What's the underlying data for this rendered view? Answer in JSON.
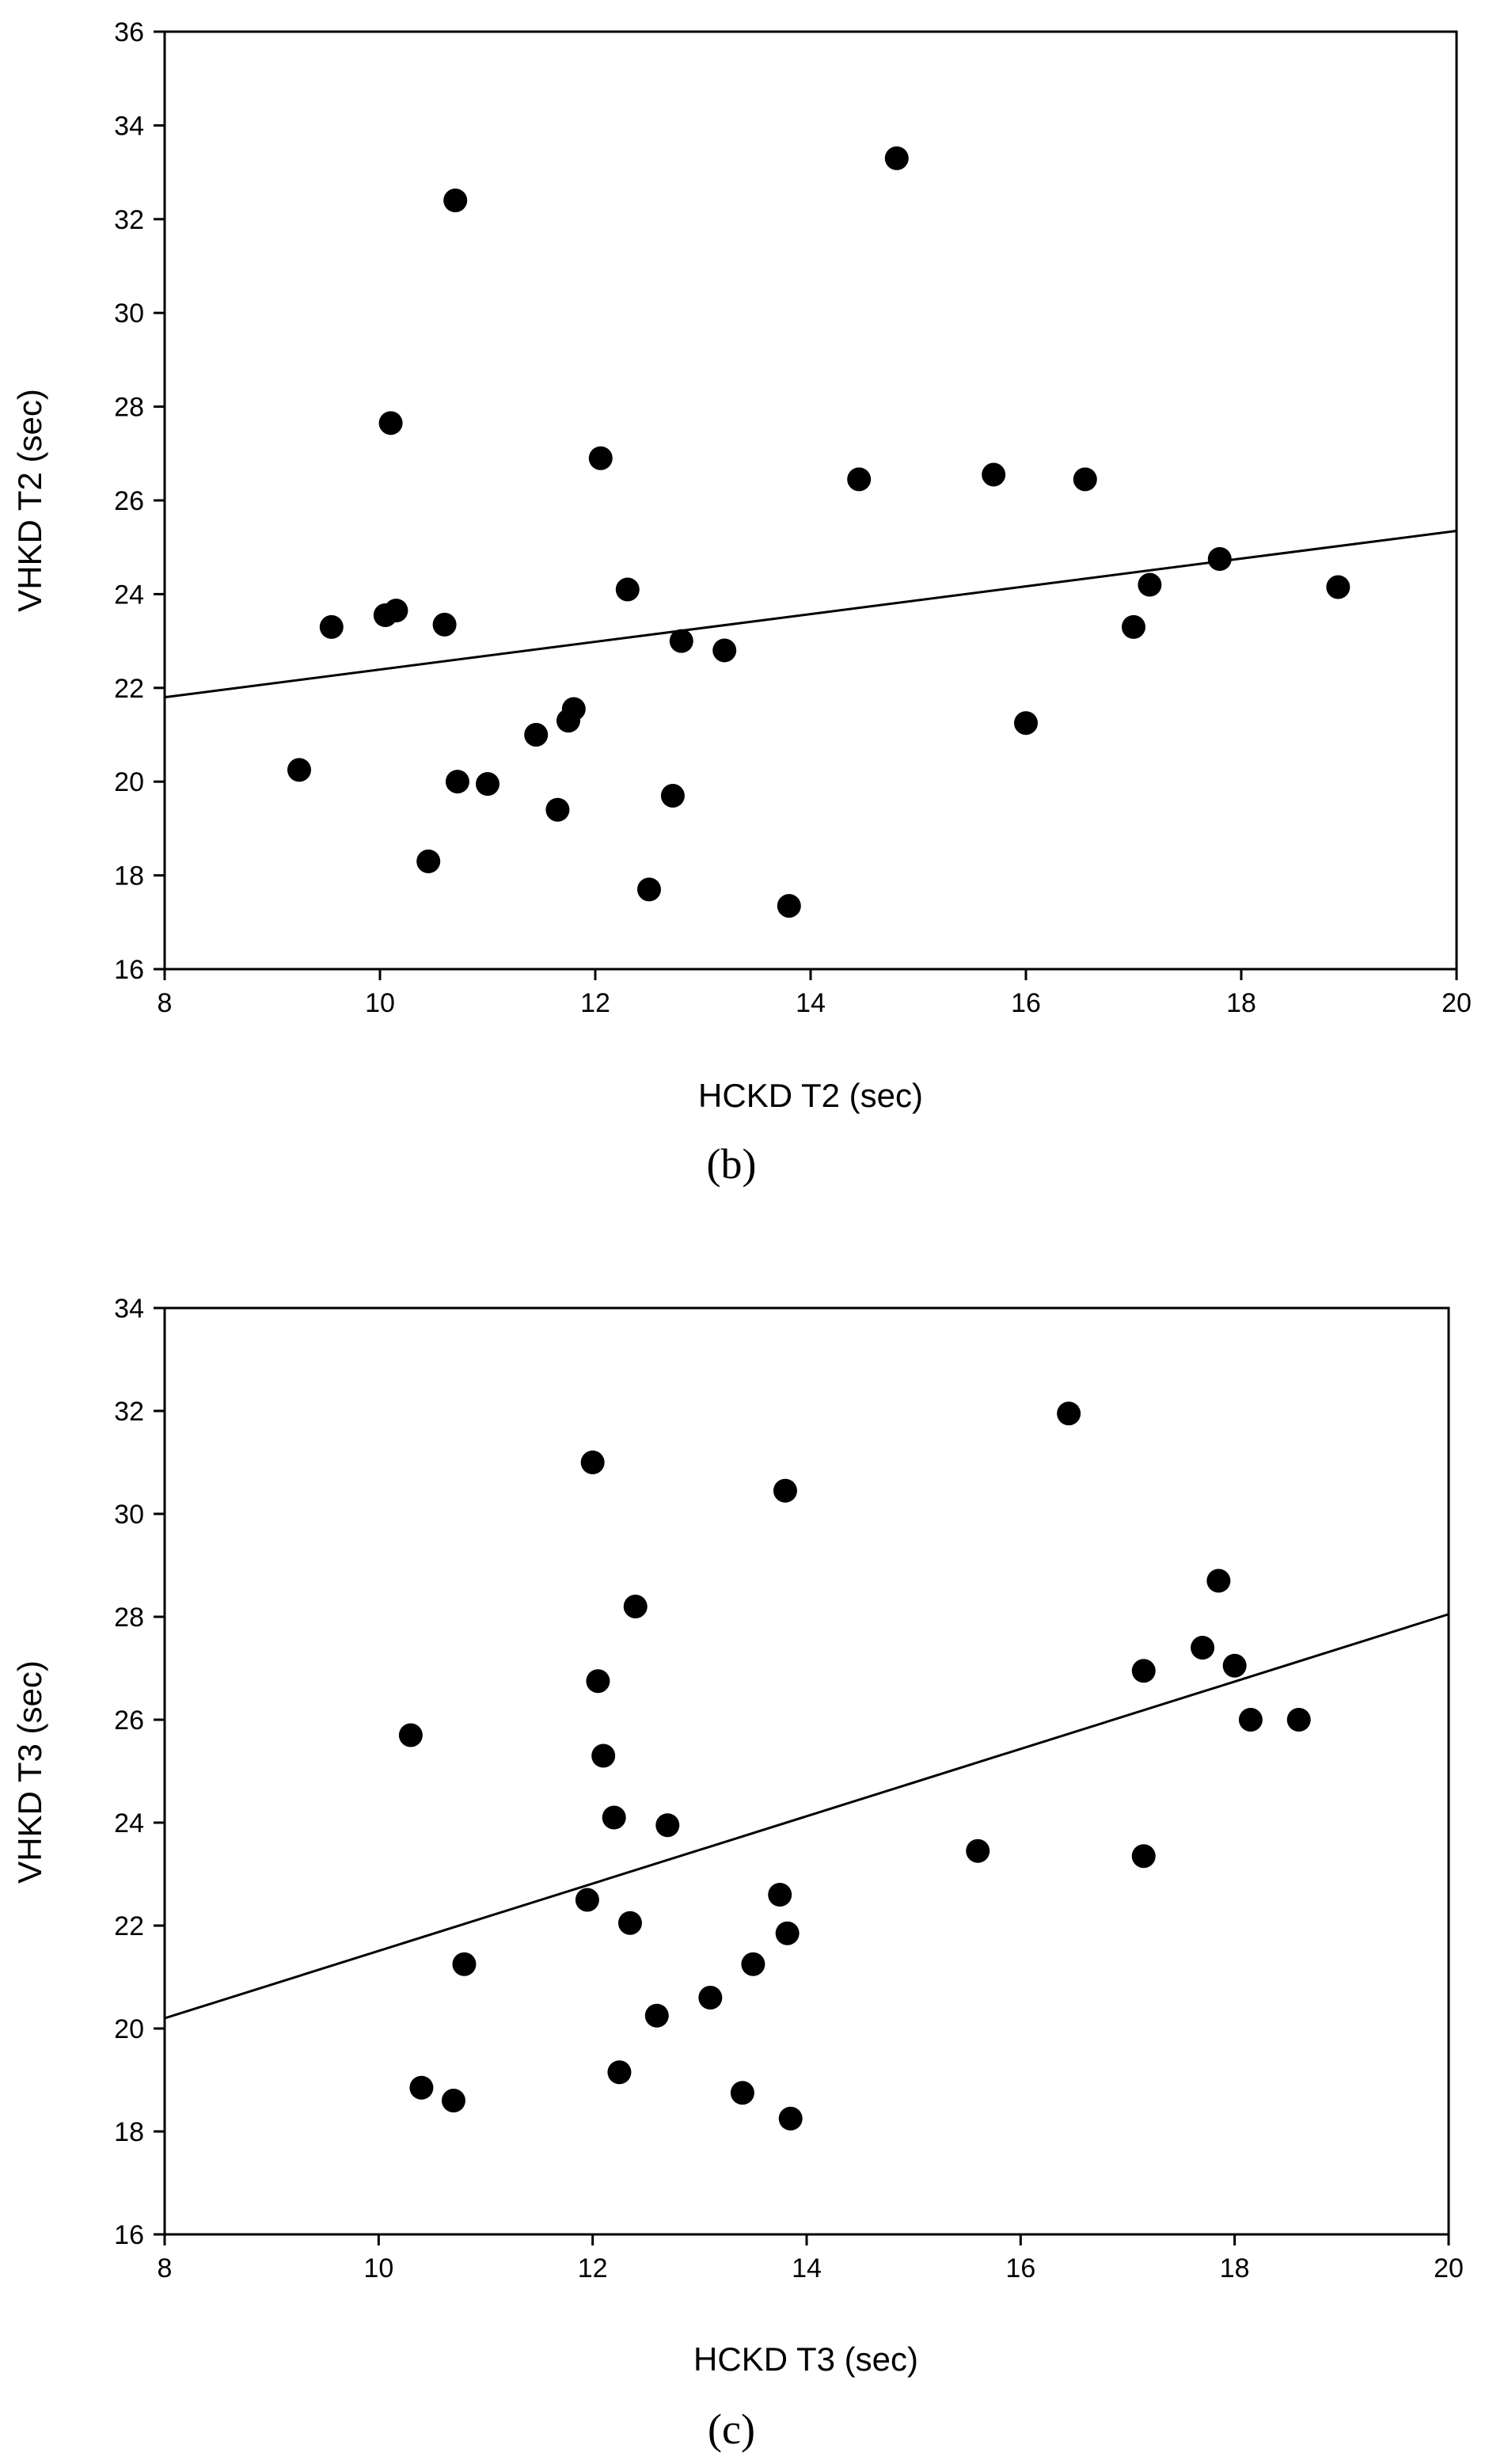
{
  "chart_data": [
    {
      "type": "scatter",
      "panel_label": "(b)",
      "xlabel": "HCKD T2 (sec)",
      "ylabel": "VHKD T2 (sec)",
      "xlim": [
        8,
        20
      ],
      "ylim": [
        16,
        36
      ],
      "xticks": [
        8,
        10,
        12,
        14,
        16,
        18,
        20
      ],
      "yticks": [
        16,
        18,
        20,
        22,
        24,
        26,
        28,
        30,
        32,
        34,
        36
      ],
      "grid": false,
      "legend": "none",
      "regression_line": {
        "x": [
          8,
          20
        ],
        "y": [
          21.8,
          25.35
        ]
      },
      "points": [
        {
          "x": 9.25,
          "y": 20.25
        },
        {
          "x": 9.55,
          "y": 23.3
        },
        {
          "x": 10.05,
          "y": 23.55
        },
        {
          "x": 10.1,
          "y": 27.65
        },
        {
          "x": 10.15,
          "y": 23.65
        },
        {
          "x": 10.45,
          "y": 18.3
        },
        {
          "x": 10.6,
          "y": 23.35
        },
        {
          "x": 10.7,
          "y": 32.4
        },
        {
          "x": 10.72,
          "y": 20.0
        },
        {
          "x": 11.0,
          "y": 19.95
        },
        {
          "x": 11.45,
          "y": 21.0
        },
        {
          "x": 11.65,
          "y": 19.4
        },
        {
          "x": 11.75,
          "y": 21.3
        },
        {
          "x": 11.8,
          "y": 21.55
        },
        {
          "x": 12.05,
          "y": 26.9
        },
        {
          "x": 12.3,
          "y": 24.1
        },
        {
          "x": 12.5,
          "y": 17.7
        },
        {
          "x": 12.72,
          "y": 19.7
        },
        {
          "x": 12.8,
          "y": 23.0
        },
        {
          "x": 13.2,
          "y": 22.8
        },
        {
          "x": 13.8,
          "y": 17.35
        },
        {
          "x": 14.45,
          "y": 26.45
        },
        {
          "x": 14.8,
          "y": 33.3
        },
        {
          "x": 15.7,
          "y": 26.55
        },
        {
          "x": 16.0,
          "y": 21.25
        },
        {
          "x": 16.55,
          "y": 26.45
        },
        {
          "x": 17.0,
          "y": 23.3
        },
        {
          "x": 17.15,
          "y": 24.2
        },
        {
          "x": 17.8,
          "y": 24.75
        },
        {
          "x": 18.9,
          "y": 24.15
        }
      ]
    },
    {
      "type": "scatter",
      "panel_label": "(c)",
      "xlabel": "HCKD T3 (sec)",
      "ylabel": "VHKD T3 (sec)",
      "xlim": [
        8,
        20
      ],
      "ylim": [
        16,
        34
      ],
      "xticks": [
        8,
        10,
        12,
        14,
        16,
        18,
        20
      ],
      "yticks": [
        16,
        18,
        20,
        22,
        24,
        26,
        28,
        30,
        32,
        34
      ],
      "grid": false,
      "legend": "none",
      "regression_line": {
        "x": [
          8,
          20
        ],
        "y": [
          20.2,
          28.05
        ]
      },
      "points": [
        {
          "x": 10.3,
          "y": 25.7
        },
        {
          "x": 10.4,
          "y": 18.85
        },
        {
          "x": 10.7,
          "y": 18.6
        },
        {
          "x": 10.8,
          "y": 21.25
        },
        {
          "x": 11.95,
          "y": 22.5
        },
        {
          "x": 12.0,
          "y": 31.0
        },
        {
          "x": 12.05,
          "y": 26.75
        },
        {
          "x": 12.1,
          "y": 25.3
        },
        {
          "x": 12.2,
          "y": 24.1
        },
        {
          "x": 12.25,
          "y": 19.15
        },
        {
          "x": 12.35,
          "y": 22.05
        },
        {
          "x": 12.4,
          "y": 28.2
        },
        {
          "x": 12.6,
          "y": 20.25
        },
        {
          "x": 12.7,
          "y": 23.95
        },
        {
          "x": 13.1,
          "y": 20.6
        },
        {
          "x": 13.4,
          "y": 18.75
        },
        {
          "x": 13.5,
          "y": 21.25
        },
        {
          "x": 13.75,
          "y": 22.6
        },
        {
          "x": 13.8,
          "y": 30.45
        },
        {
          "x": 13.82,
          "y": 21.85
        },
        {
          "x": 13.85,
          "y": 18.25
        },
        {
          "x": 15.6,
          "y": 23.45
        },
        {
          "x": 16.45,
          "y": 31.95
        },
        {
          "x": 17.15,
          "y": 26.95
        },
        {
          "x": 17.15,
          "y": 23.35
        },
        {
          "x": 17.7,
          "y": 27.4
        },
        {
          "x": 17.85,
          "y": 28.7
        },
        {
          "x": 18.0,
          "y": 27.05
        },
        {
          "x": 18.15,
          "y": 26.0
        },
        {
          "x": 18.6,
          "y": 26.0
        }
      ]
    }
  ]
}
